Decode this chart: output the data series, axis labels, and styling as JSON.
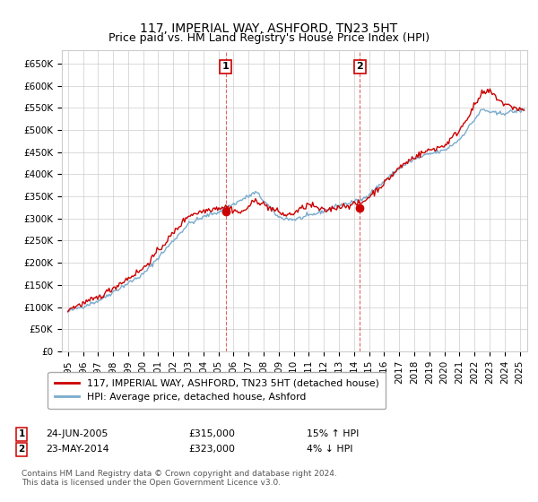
{
  "title": "117, IMPERIAL WAY, ASHFORD, TN23 5HT",
  "subtitle": "Price paid vs. HM Land Registry's House Price Index (HPI)",
  "ylabel_ticks": [
    "£0",
    "£50K",
    "£100K",
    "£150K",
    "£200K",
    "£250K",
    "£300K",
    "£350K",
    "£400K",
    "£450K",
    "£500K",
    "£550K",
    "£600K",
    "£650K"
  ],
  "ytick_values": [
    0,
    50000,
    100000,
    150000,
    200000,
    250000,
    300000,
    350000,
    400000,
    450000,
    500000,
    550000,
    600000,
    650000
  ],
  "ylim": [
    0,
    680000
  ],
  "xlim_start": 1994.6,
  "xlim_end": 2025.5,
  "xtick_years": [
    1995,
    1996,
    1997,
    1998,
    1999,
    2000,
    2001,
    2002,
    2003,
    2004,
    2005,
    2006,
    2007,
    2008,
    2009,
    2010,
    2011,
    2012,
    2013,
    2014,
    2015,
    2016,
    2017,
    2018,
    2019,
    2020,
    2021,
    2022,
    2023,
    2024,
    2025
  ],
  "transaction1_x": 2005.48,
  "transaction1_y": 315000,
  "transaction1_label": "1",
  "transaction1_date": "24-JUN-2005",
  "transaction1_price": "£315,000",
  "transaction1_hpi": "15% ↑ HPI",
  "transaction2_x": 2014.39,
  "transaction2_y": 323000,
  "transaction2_label": "2",
  "transaction2_date": "23-MAY-2014",
  "transaction2_price": "£323,000",
  "transaction2_hpi": "4% ↓ HPI",
  "red_color": "#cc0000",
  "blue_color": "#7aabcc",
  "grid_color": "#cccccc",
  "background_color": "#ffffff",
  "legend_label_red": "117, IMPERIAL WAY, ASHFORD, TN23 5HT (detached house)",
  "legend_label_blue": "HPI: Average price, detached house, Ashford",
  "footer": "Contains HM Land Registry data © Crown copyright and database right 2024.\nThis data is licensed under the Open Government Licence v3.0.",
  "title_fontsize": 10,
  "tick_fontsize": 7.5
}
